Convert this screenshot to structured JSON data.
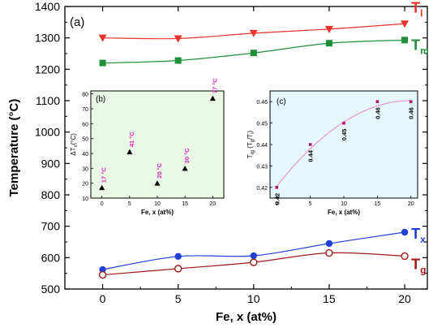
{
  "chart_data": [
    {
      "panel": "(a)",
      "type": "line",
      "xlabel": "Fe, x (at%)",
      "ylabel": "Temperature (°C)",
      "x": [
        0,
        5,
        10,
        15,
        20
      ],
      "xticks": [
        0,
        5,
        10,
        15,
        20
      ],
      "yticks": [
        500,
        600,
        700,
        800,
        900,
        1000,
        1100,
        1200,
        1300,
        1400
      ],
      "xlim": [
        -2.5,
        21.5
      ],
      "ylim": [
        500,
        1400
      ],
      "series": [
        {
          "name": "T",
          "sub": "l",
          "values": [
            1300,
            1298,
            1315,
            1328,
            1345
          ],
          "color": "#e8332a",
          "fit_color": "#e8332a",
          "marker": "triangle-down"
        },
        {
          "name": "T",
          "sub": "m",
          "values": [
            1220,
            1228,
            1252,
            1283,
            1293
          ],
          "color": "#1f8f3a",
          "fit_color": "#1f8f3a",
          "marker": "square"
        },
        {
          "name": "T",
          "sub": "x",
          "values": [
            562,
            604,
            606,
            645,
            681
          ],
          "color": "#1e3fd8",
          "fit_color": "#1e3fd8",
          "marker": "circle"
        },
        {
          "name": "T",
          "sub": "g",
          "values": [
            545,
            565,
            585,
            615,
            605
          ],
          "color": "#a01818",
          "fit_color": "#a01818",
          "marker": "circle-open"
        }
      ]
    },
    {
      "panel": "(b)",
      "type": "scatter",
      "xlabel": "Fe, x (at%)",
      "ylabel": "ΔT",
      "ylabel_sub": "x",
      "ylabel_unit": "(°C)",
      "x": [
        0,
        5,
        10,
        15,
        20
      ],
      "values": [
        17,
        41,
        20,
        30,
        77
      ],
      "point_labels": [
        "17 °C",
        "41 °C",
        "20 °C",
        "30 °C",
        "77 °C"
      ],
      "xticks": [
        0,
        5,
        10,
        15,
        20
      ],
      "yticks": [
        10,
        20,
        30,
        40,
        50,
        60,
        70,
        80
      ],
      "xlim": [
        -2,
        22
      ],
      "ylim": [
        10,
        82
      ],
      "background": "#eaf7e4",
      "marker_color": "#000000",
      "label_color": "#e01fc8"
    },
    {
      "panel": "(c)",
      "type": "scatter",
      "xlabel": "Fe, x (at%)",
      "ylabel": "T",
      "ylabel_sub": "rg",
      "ylabel_rest": " (T",
      "ylabel_sub2": "g",
      "ylabel_rest2": "/T",
      "ylabel_sub3": "l",
      "ylabel_end": ")",
      "x": [
        0,
        5,
        10,
        15,
        20
      ],
      "values": [
        0.42,
        0.44,
        0.45,
        0.46,
        0.46
      ],
      "point_labels": [
        "0.42",
        "0.44",
        "0.45",
        "0.46",
        "0.46"
      ],
      "xticks": [
        0,
        5,
        10,
        15,
        20
      ],
      "yticks": [
        0.42,
        0.43,
        0.44,
        0.45,
        0.46
      ],
      "xlim": [
        -1,
        21
      ],
      "ylim": [
        0.415,
        0.465
      ],
      "background": "#e6f7fb",
      "marker_color": "#b0136e",
      "fit_color": "#e985c8"
    }
  ]
}
